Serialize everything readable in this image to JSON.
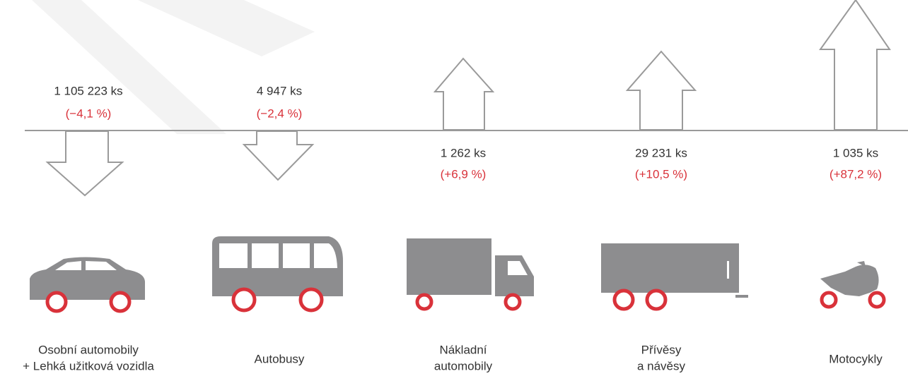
{
  "items": [
    {
      "count": "1 105 223 ks",
      "change": "(−4,1 %)",
      "label": [
        "Osobní automobily",
        "+ Lehká užitková vozidla"
      ]
    },
    {
      "count": "4 947 ks",
      "change": "(−2,4 %)",
      "label": [
        "Autobusy"
      ]
    },
    {
      "count": "1 262 ks",
      "change": "(+6,9 %)",
      "label": [
        "Nákladní",
        "automobily"
      ]
    },
    {
      "count": "29 231 ks",
      "change": "(+10,5 %)",
      "label": [
        "Přívěsy",
        "a návěsy"
      ]
    },
    {
      "count": "1 035 ks",
      "change": "(+87,2 %)",
      "label": [
        "Motocykly"
      ]
    }
  ]
}
